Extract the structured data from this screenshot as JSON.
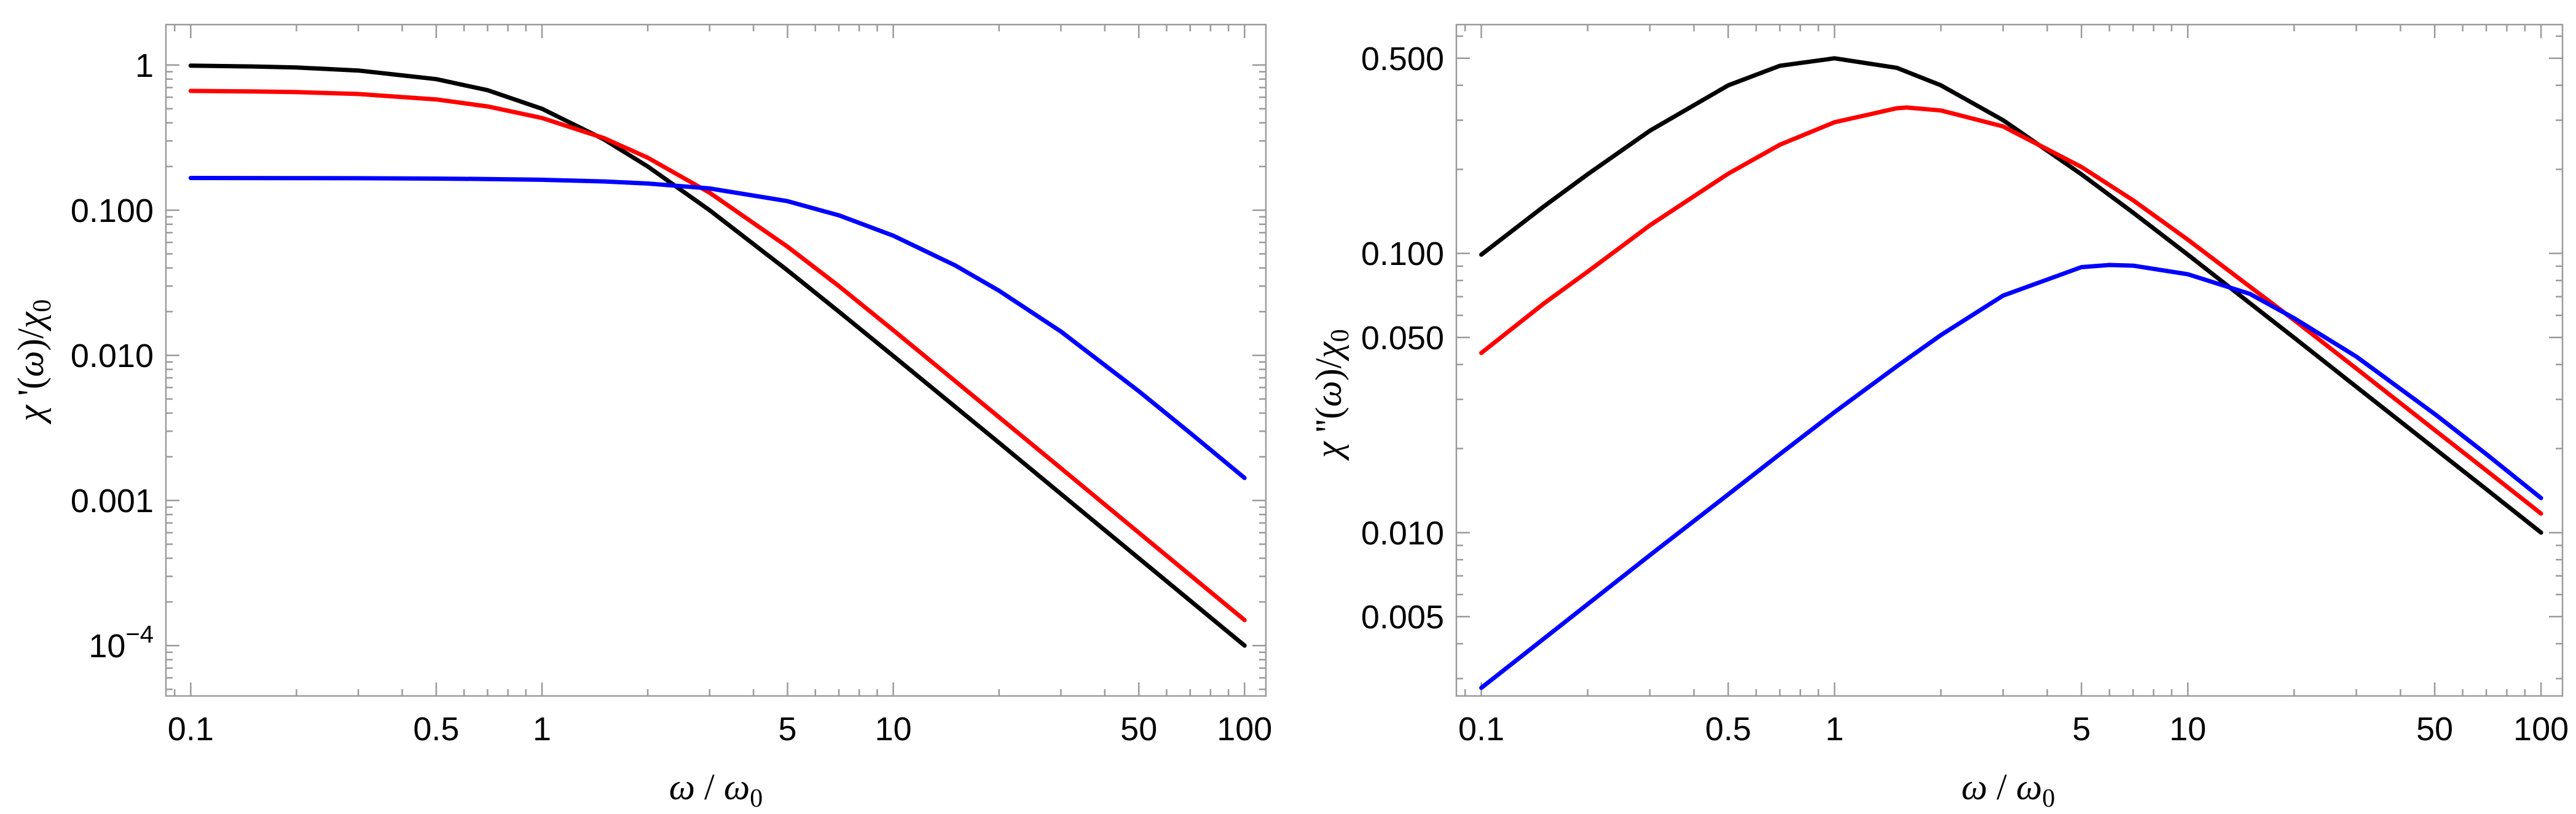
{
  "chart_data": [
    {
      "type": "line",
      "id": "left",
      "xscale": "log",
      "yscale": "log",
      "xlim": [
        0.085,
        115
      ],
      "ylim": [
        4.5e-05,
        1.9
      ],
      "xlabel": "ω / ω0",
      "ylabel": "χ '(ω)/χ0",
      "xticks": [
        {
          "v": 0.1,
          "label": "0.1"
        },
        {
          "v": 0.5,
          "label": "0.5"
        },
        {
          "v": 1,
          "label": "1"
        },
        {
          "v": 5,
          "label": "5"
        },
        {
          "v": 10,
          "label": "10"
        },
        {
          "v": 50,
          "label": "50"
        },
        {
          "v": 100,
          "label": "100"
        }
      ],
      "yticks": [
        {
          "v": 1,
          "label": "1"
        },
        {
          "v": 0.1,
          "label": "0.100"
        },
        {
          "v": 0.01,
          "label": "0.010"
        },
        {
          "v": 0.001,
          "label": "0.001"
        },
        {
          "v": 0.0001,
          "label": "10",
          "sup": "−4"
        }
      ],
      "series": [
        {
          "name": "black",
          "color": "#000000",
          "x": [
            0.1,
            0.15,
            0.2,
            0.3,
            0.5,
            0.7,
            1,
            1.5,
            2,
            3,
            5,
            7,
            10,
            20,
            30,
            50,
            70,
            100
          ],
          "y": [
            0.99,
            0.978,
            0.962,
            0.917,
            0.8,
            0.671,
            0.5,
            0.308,
            0.2,
            0.1,
            0.0385,
            0.02,
            0.0099,
            0.0025,
            0.00111,
            0.0004,
            0.000204,
            0.0001
          ]
        },
        {
          "name": "red",
          "color": "#ff0000",
          "x": [
            0.1,
            0.15,
            0.2,
            0.3,
            0.5,
            0.7,
            1,
            1.5,
            2,
            3,
            5,
            7,
            10,
            20,
            30,
            50,
            70,
            100
          ],
          "y": [
            0.663,
            0.658,
            0.651,
            0.632,
            0.58,
            0.519,
            0.432,
            0.314,
            0.23,
            0.132,
            0.056,
            0.03,
            0.0149,
            0.00375,
            0.00167,
            0.0006,
            0.000306,
            0.00015
          ]
        },
        {
          "name": "blue",
          "color": "#0000ff",
          "x": [
            0.1,
            0.2,
            0.3,
            0.5,
            0.7,
            1,
            1.5,
            2,
            3,
            5,
            7,
            10,
            15,
            20,
            30,
            50,
            70,
            100
          ],
          "y": [
            0.1667,
            0.1664,
            0.166,
            0.1651,
            0.164,
            0.162,
            0.1578,
            0.1527,
            0.1412,
            0.1154,
            0.0922,
            0.0667,
            0.0417,
            0.0279,
            0.0146,
            0.00566,
            0.00292,
            0.00143
          ]
        }
      ]
    },
    {
      "type": "line",
      "id": "right",
      "xscale": "log",
      "yscale": "log",
      "xlim": [
        0.085,
        115
      ],
      "ylim": [
        0.0026,
        0.66
      ],
      "xlabel": "ω / ω0",
      "ylabel": "χ ''(ω)/χ0",
      "xticks": [
        {
          "v": 0.1,
          "label": "0.1"
        },
        {
          "v": 0.5,
          "label": "0.5"
        },
        {
          "v": 1,
          "label": "1"
        },
        {
          "v": 5,
          "label": "5"
        },
        {
          "v": 10,
          "label": "10"
        },
        {
          "v": 50,
          "label": "50"
        },
        {
          "v": 100,
          "label": "100"
        }
      ],
      "yticks": [
        {
          "v": 0.5,
          "label": "0.500"
        },
        {
          "v": 0.1,
          "label": "0.100"
        },
        {
          "v": 0.05,
          "label": "0.050"
        },
        {
          "v": 0.01,
          "label": "0.010"
        },
        {
          "v": 0.005,
          "label": "0.005"
        }
      ],
      "series": [
        {
          "name": "black",
          "color": "#000000",
          "x": [
            0.1,
            0.15,
            0.2,
            0.3,
            0.5,
            0.7,
            1,
            1.5,
            2,
            3,
            5,
            7,
            10,
            20,
            30,
            50,
            70,
            100
          ],
          "y": [
            0.099,
            0.147,
            0.192,
            0.275,
            0.4,
            0.47,
            0.5,
            0.462,
            0.4,
            0.3,
            0.192,
            0.14,
            0.099,
            0.0499,
            0.0333,
            0.02,
            0.0143,
            0.01
          ]
        },
        {
          "name": "red",
          "color": "#ff0000",
          "x": [
            0.1,
            0.15,
            0.2,
            0.3,
            0.5,
            0.7,
            1,
            1.5,
            1.6,
            2,
            3,
            5,
            7,
            10,
            20,
            30,
            50,
            70,
            100
          ],
          "y": [
            0.044,
            0.066,
            0.086,
            0.126,
            0.193,
            0.245,
            0.295,
            0.331,
            0.333,
            0.325,
            0.285,
            0.204,
            0.155,
            0.112,
            0.0577,
            0.0387,
            0.0233,
            0.0167,
            0.0117
          ]
        },
        {
          "name": "blue",
          "color": "#0000ff",
          "x": [
            0.1,
            0.15,
            0.2,
            0.3,
            0.5,
            0.7,
            1,
            1.5,
            2,
            3,
            5,
            6,
            7,
            10,
            15,
            20,
            30,
            50,
            70,
            100
          ],
          "y": [
            0.00278,
            0.00416,
            0.00554,
            0.0083,
            0.0137,
            0.0191,
            0.027,
            0.0394,
            0.051,
            0.0706,
            0.0893,
            0.0909,
            0.0904,
            0.0842,
            0.0716,
            0.0586,
            0.0427,
            0.0266,
            0.0191,
            0.0133
          ]
        }
      ]
    }
  ]
}
